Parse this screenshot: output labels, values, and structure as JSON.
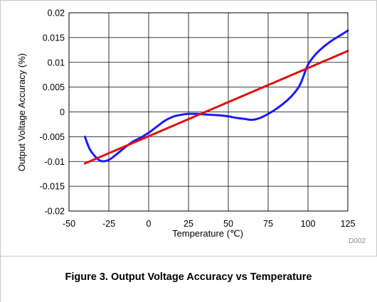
{
  "caption": "Figure 3. Output Voltage Accuracy vs Temperature",
  "chart_data": {
    "type": "line",
    "title": "",
    "xlabel": "Temperature (℃)",
    "ylabel": "Output Voltage Accuracy (%)",
    "code": "D002",
    "xlim": [
      -50,
      125
    ],
    "ylim": [
      -0.02,
      0.02
    ],
    "x_ticks": [
      -50,
      -25,
      0,
      25,
      50,
      75,
      100,
      125
    ],
    "y_ticks": [
      0.02,
      0.015,
      0.01,
      0.005,
      0,
      -0.005,
      -0.01,
      -0.015,
      -0.02
    ],
    "x_tick_labels": [
      "-50",
      "-25",
      "0",
      "25",
      "50",
      "75",
      "100",
      "125"
    ],
    "y_tick_labels": [
      "0.02",
      "0.015",
      "0.01",
      "0.005",
      "0",
      "-0.005",
      "-0.01",
      "-0.015",
      "-0.02"
    ],
    "grid": true,
    "series": [
      {
        "color": "#1a1aff",
        "x": [
          -40,
          -37,
          -33,
          -30,
          -27,
          -24,
          -20,
          -15,
          -10,
          -5,
          0,
          5,
          10,
          15,
          20,
          25,
          30,
          35,
          40,
          45,
          50,
          55,
          60,
          65,
          70,
          75,
          80,
          85,
          90,
          95,
          100,
          105,
          110,
          115,
          120,
          125
        ],
        "y": [
          -0.005,
          -0.0075,
          -0.0092,
          -0.0099,
          -0.0099,
          -0.0095,
          -0.0085,
          -0.0072,
          -0.006,
          -0.0052,
          -0.0042,
          -0.003,
          -0.0018,
          -0.001,
          -0.0006,
          -0.0004,
          -0.0004,
          -0.0005,
          -0.0006,
          -0.0007,
          -0.0009,
          -0.0012,
          -0.0014,
          -0.0016,
          -0.0012,
          -0.0004,
          0.0006,
          0.0018,
          0.0033,
          0.0055,
          0.0095,
          0.0117,
          0.0132,
          0.0144,
          0.0154,
          0.0164
        ]
      },
      {
        "color": "#e01010",
        "x": [
          -40,
          125
        ],
        "y": [
          -0.0104,
          0.0123
        ]
      }
    ]
  }
}
